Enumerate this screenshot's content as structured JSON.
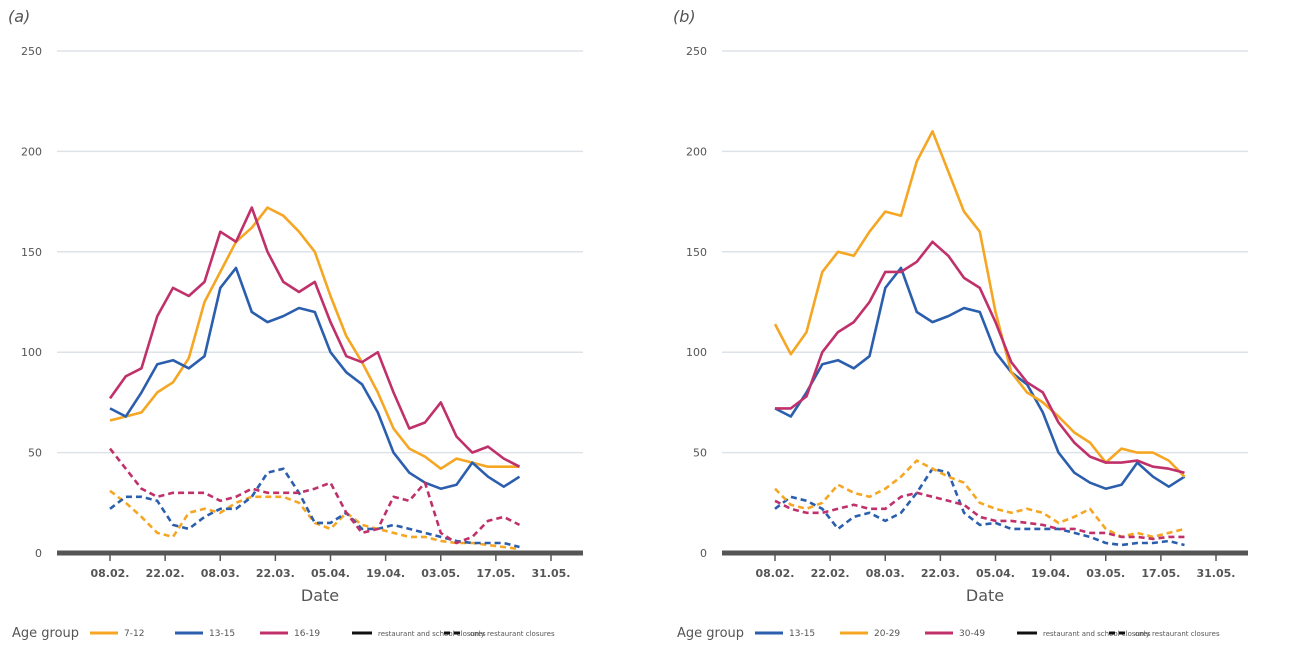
{
  "chart_data": [
    {
      "type": "line",
      "panel_label": "(a)",
      "xlabel": "Date",
      "legend_title": "Age group",
      "x": [
        "08.02.",
        "12.02.",
        "16.02.",
        "20.02.",
        "24.02.",
        "28.02.",
        "04.03.",
        "08.03.",
        "12.03.",
        "16.03.",
        "20.03.",
        "24.03.",
        "28.03.",
        "01.04.",
        "05.04.",
        "09.04.",
        "13.04.",
        "17.04.",
        "21.04.",
        "25.04.",
        "29.04.",
        "03.05.",
        "07.05.",
        "11.05.",
        "15.05.",
        "19.05.",
        "23.05."
      ],
      "xticks": [
        "08.02.",
        "22.02.",
        "08.03.",
        "22.03.",
        "05.04.",
        "19.04.",
        "03.05.",
        "17.05.",
        "31.05."
      ],
      "ylim": [
        0,
        250
      ],
      "yticks": [
        0,
        50,
        100,
        150,
        200,
        250
      ],
      "grid": true,
      "line_styles": [
        {
          "label": "restaurant and school closures",
          "dash": "solid"
        },
        {
          "label": "only restaurant closures",
          "dash": "dashed"
        }
      ],
      "series": [
        {
          "name": "7-12",
          "color": "#f5a623",
          "values": [
            66,
            68,
            70,
            80,
            85,
            97,
            125,
            140,
            155,
            162,
            172,
            168,
            160,
            150,
            128,
            108,
            95,
            80,
            62,
            52,
            48,
            42,
            47,
            45,
            43,
            43,
            43
          ],
          "dashed_values": [
            31,
            25,
            18,
            10,
            8,
            20,
            22,
            20,
            25,
            28,
            28,
            28,
            25,
            15,
            12,
            20,
            14,
            12,
            10,
            8,
            8,
            6,
            5,
            5,
            4,
            3,
            2
          ]
        },
        {
          "name": "13-15",
          "color": "#2b5fae",
          "values": [
            72,
            68,
            80,
            94,
            96,
            92,
            98,
            132,
            142,
            120,
            115,
            118,
            122,
            120,
            100,
            90,
            84,
            70,
            50,
            40,
            35,
            32,
            34,
            45,
            38,
            33,
            38
          ],
          "dashed_values": [
            22,
            28,
            28,
            26,
            14,
            12,
            18,
            22,
            22,
            28,
            40,
            42,
            30,
            15,
            15,
            20,
            12,
            12,
            14,
            12,
            10,
            8,
            6,
            5,
            5,
            5,
            3
          ]
        },
        {
          "name": "16-19",
          "color": "#c0306a",
          "values": [
            77,
            88,
            92,
            118,
            132,
            128,
            135,
            160,
            155,
            172,
            150,
            135,
            130,
            135,
            115,
            98,
            95,
            100,
            80,
            62,
            65,
            75,
            58,
            50,
            53,
            47,
            43
          ],
          "dashed_values": [
            52,
            42,
            32,
            28,
            30,
            30,
            30,
            26,
            28,
            32,
            30,
            30,
            30,
            32,
            35,
            20,
            10,
            12,
            28,
            26,
            35,
            10,
            5,
            8,
            16,
            18,
            14
          ]
        }
      ]
    },
    {
      "type": "line",
      "panel_label": "(b)",
      "xlabel": "Date",
      "legend_title": "Age group",
      "x": [
        "08.02.",
        "12.02.",
        "16.02.",
        "20.02.",
        "24.02.",
        "28.02.",
        "04.03.",
        "08.03.",
        "12.03.",
        "16.03.",
        "20.03.",
        "24.03.",
        "28.03.",
        "01.04.",
        "05.04.",
        "09.04.",
        "13.04.",
        "17.04.",
        "21.04.",
        "25.04.",
        "29.04.",
        "03.05.",
        "07.05.",
        "11.05.",
        "15.05.",
        "19.05.",
        "23.05."
      ],
      "xticks": [
        "08.02.",
        "22.02.",
        "08.03.",
        "22.03.",
        "05.04.",
        "19.04.",
        "03.05.",
        "17.05.",
        "31.05."
      ],
      "ylim": [
        0,
        250
      ],
      "yticks": [
        0,
        50,
        100,
        150,
        200,
        250
      ],
      "grid": true,
      "line_styles": [
        {
          "label": "restaurant and school closures",
          "dash": "solid"
        },
        {
          "label": "only restaurant closures",
          "dash": "dashed"
        }
      ],
      "series": [
        {
          "name": "13-15",
          "color": "#2b5fae",
          "values": [
            72,
            68,
            80,
            94,
            96,
            92,
            98,
            132,
            142,
            120,
            115,
            118,
            122,
            120,
            100,
            90,
            84,
            70,
            50,
            40,
            35,
            32,
            34,
            45,
            38,
            33,
            38
          ],
          "dashed_values": [
            22,
            28,
            26,
            22,
            12,
            18,
            20,
            16,
            20,
            30,
            42,
            40,
            20,
            14,
            15,
            12,
            12,
            12,
            12,
            10,
            8,
            5,
            4,
            5,
            5,
            6,
            4
          ]
        },
        {
          "name": "20-29",
          "color": "#f5a623",
          "values": [
            114,
            99,
            110,
            140,
            150,
            148,
            160,
            170,
            168,
            195,
            210,
            190,
            170,
            160,
            120,
            90,
            80,
            75,
            68,
            60,
            55,
            45,
            52,
            50,
            50,
            46,
            38
          ],
          "dashed_values": [
            32,
            24,
            22,
            25,
            34,
            30,
            28,
            32,
            38,
            46,
            42,
            38,
            35,
            25,
            22,
            20,
            22,
            20,
            15,
            18,
            22,
            12,
            8,
            10,
            8,
            10,
            12
          ]
        },
        {
          "name": "30-49",
          "color": "#c0306a",
          "values": [
            72,
            72,
            78,
            100,
            110,
            115,
            125,
            140,
            140,
            145,
            155,
            148,
            137,
            132,
            115,
            95,
            85,
            80,
            65,
            55,
            48,
            45,
            45,
            46,
            43,
            42,
            40
          ],
          "dashed_values": [
            26,
            22,
            20,
            20,
            22,
            24,
            22,
            22,
            28,
            30,
            28,
            26,
            24,
            18,
            16,
            16,
            15,
            14,
            12,
            12,
            10,
            10,
            8,
            8,
            7,
            8,
            8
          ]
        }
      ]
    }
  ]
}
